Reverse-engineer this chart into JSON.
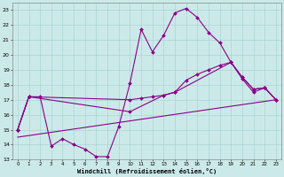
{
  "xlabel": "Windchill (Refroidissement éolien,°C)",
  "xlim": [
    -0.5,
    23.5
  ],
  "ylim": [
    13,
    23.5
  ],
  "yticks": [
    13,
    14,
    15,
    16,
    17,
    18,
    19,
    20,
    21,
    22,
    23
  ],
  "xticks": [
    0,
    1,
    2,
    3,
    4,
    5,
    6,
    7,
    8,
    9,
    10,
    11,
    12,
    13,
    14,
    15,
    16,
    17,
    18,
    19,
    20,
    21,
    22,
    23
  ],
  "bg_color": "#cce9e9",
  "line_color": "#880088",
  "grid_color": "#aad4d4",
  "line1_x": [
    0,
    1,
    2,
    3,
    4,
    5,
    6,
    7,
    8,
    9,
    10,
    11,
    12,
    13,
    14,
    15,
    16,
    17,
    18,
    19,
    20,
    21,
    22,
    23
  ],
  "line1_y": [
    15.0,
    17.2,
    17.2,
    13.9,
    14.4,
    14.0,
    13.7,
    13.2,
    13.2,
    15.2,
    18.1,
    21.7,
    20.2,
    21.3,
    22.8,
    23.1,
    22.5,
    21.5,
    20.8,
    19.5,
    18.4,
    17.5,
    17.8,
    17.0
  ],
  "line2_x": [
    0,
    1,
    10,
    11,
    12,
    13,
    14,
    15,
    16,
    17,
    18,
    19,
    20,
    21,
    22,
    23
  ],
  "line2_y": [
    15.0,
    17.2,
    17.0,
    17.1,
    17.2,
    17.3,
    17.5,
    18.3,
    18.7,
    19.0,
    19.3,
    19.5,
    18.5,
    17.7,
    17.8,
    17.0
  ],
  "line3_x": [
    0,
    1,
    10,
    13,
    14,
    19,
    20,
    21,
    22,
    23
  ],
  "line3_y": [
    15.0,
    17.2,
    16.2,
    17.3,
    17.5,
    19.5,
    18.5,
    17.7,
    17.8,
    17.0
  ],
  "line4_x": [
    0,
    23
  ],
  "line4_y": [
    14.5,
    17.0
  ]
}
